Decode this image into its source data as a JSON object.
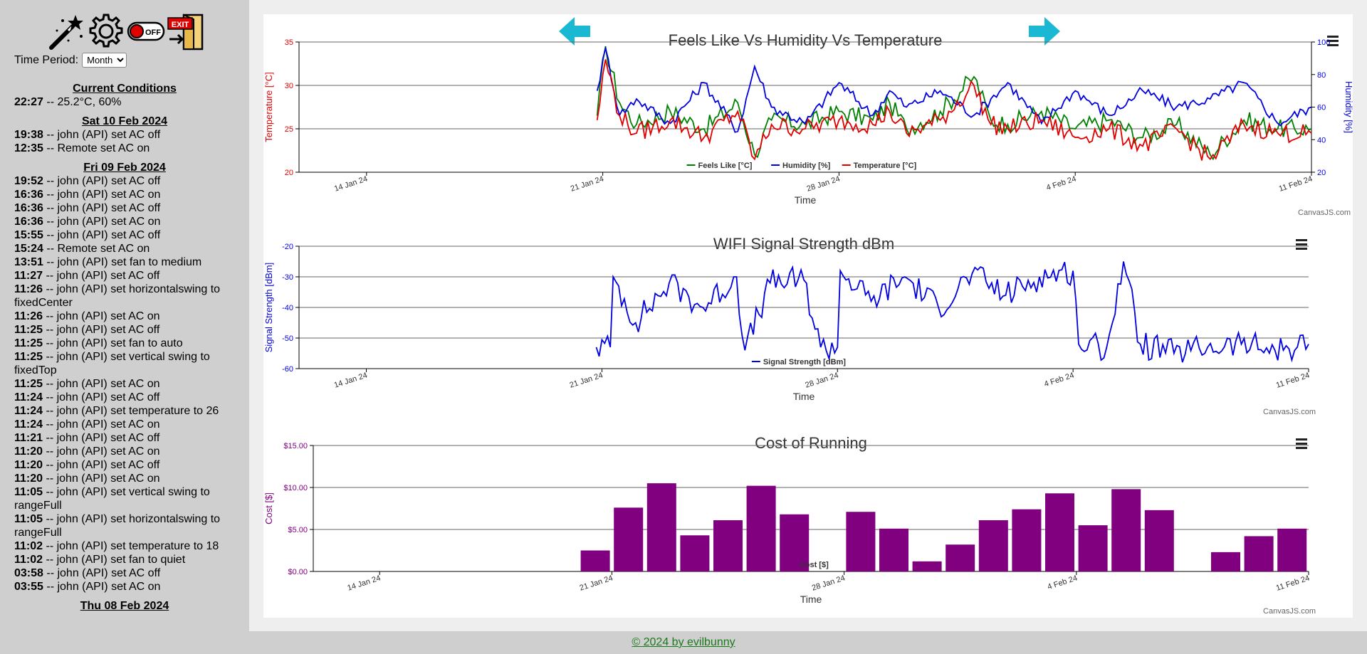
{
  "toolbar": {
    "icons": [
      "magic-wand-icon",
      "gear-icon",
      "power-off-icon",
      "exit-door-icon"
    ],
    "off_label": "OFF",
    "exit_label": "EXIT"
  },
  "period": {
    "label": "Time Period:",
    "selected": "Month"
  },
  "log": [
    {
      "heading": "Current Conditions",
      "entries": [
        {
          "time": "22:27",
          "text": "-- 25.2°C, 60%"
        }
      ]
    },
    {
      "heading": "Sat 10 Feb 2024",
      "entries": [
        {
          "time": "19:38",
          "text": "-- john (API) set AC off"
        },
        {
          "time": "12:35",
          "text": "-- Remote set AC on"
        }
      ]
    },
    {
      "heading": "Fri 09 Feb 2024",
      "entries": [
        {
          "time": "19:52",
          "text": "-- john (API) set AC off"
        },
        {
          "time": "16:36",
          "text": "-- john (API) set AC on"
        },
        {
          "time": "16:36",
          "text": "-- john (API) set AC off"
        },
        {
          "time": "16:36",
          "text": "-- john (API) set AC on"
        },
        {
          "time": "15:55",
          "text": "-- john (API) set AC off"
        },
        {
          "time": "15:24",
          "text": "-- Remote set AC on"
        },
        {
          "time": "13:51",
          "text": "-- john (API) set fan to medium"
        },
        {
          "time": "11:27",
          "text": "-- john (API) set AC off"
        },
        {
          "time": "11:26",
          "text": "-- john (API) set horizontalswing to fixedCenter"
        },
        {
          "time": "11:26",
          "text": "-- john (API) set AC on"
        },
        {
          "time": "11:25",
          "text": "-- john (API) set AC off"
        },
        {
          "time": "11:25",
          "text": "-- john (API) set fan to auto"
        },
        {
          "time": "11:25",
          "text": "-- john (API) set vertical swing to fixedTop"
        },
        {
          "time": "11:25",
          "text": "-- john (API) set AC on"
        },
        {
          "time": "11:24",
          "text": "-- john (API) set AC off"
        },
        {
          "time": "11:24",
          "text": "-- john (API) set temperature to 26"
        },
        {
          "time": "11:24",
          "text": "-- john (API) set AC on"
        },
        {
          "time": "11:21",
          "text": "-- john (API) set AC off"
        },
        {
          "time": "11:20",
          "text": "-- john (API) set AC on"
        },
        {
          "time": "11:20",
          "text": "-- john (API) set AC off"
        },
        {
          "time": "11:20",
          "text": "-- john (API) set AC on"
        },
        {
          "time": "11:05",
          "text": "-- john (API) set vertical swing to rangeFull"
        },
        {
          "time": "11:05",
          "text": "-- john (API) set horizontalswing to rangeFull"
        },
        {
          "time": "11:02",
          "text": "-- john (API) set temperature to 18"
        },
        {
          "time": "11:02",
          "text": "-- john (API) set fan to quiet"
        },
        {
          "time": "03:58",
          "text": "-- john (API) set AC off"
        },
        {
          "time": "03:55",
          "text": "-- john (API) set AC on"
        }
      ]
    },
    {
      "heading": "Thu 08 Feb 2024",
      "entries": []
    }
  ],
  "nav": {
    "prev_icon": "arrow-left-icon",
    "next_icon": "arrow-right-icon",
    "menu_icon": "hamburger-menu-icon"
  },
  "credit": "CanvasJS.com",
  "footer": {
    "text": "© 2024 by evilbunny"
  },
  "colors": {
    "temp": "#e00000",
    "humidity": "#0000e0",
    "feels": "#008000",
    "wifi": "#0000e0",
    "cost": "#800080",
    "arrow": "#1ab8d2"
  },
  "chart_data": [
    {
      "type": "line",
      "title": "Feels Like Vs Humidity Vs Temperature",
      "xlabel": "Time",
      "ylabel": "Temperature [°C]",
      "y2label": "Humidity [%]",
      "x_ticks": [
        "14 Jan 24",
        "21 Jan 24",
        "28 Jan 24",
        "4 Feb 24",
        "11 Feb 24"
      ],
      "xlim": [
        "2024-01-12",
        "2024-02-11"
      ],
      "ylim": [
        20,
        35
      ],
      "y_ticks": [
        20,
        25,
        30,
        35
      ],
      "y2lim": [
        20,
        100
      ],
      "y2_ticks": [
        20,
        40,
        60,
        80,
        100
      ],
      "legend": "bottom-center",
      "grid": true,
      "series": [
        {
          "name": "Feels Like [°C]",
          "axis": "left",
          "color": "#008000",
          "x": [
            "2024-01-20 20:00",
            "2024-01-21 02:00",
            "2024-01-21 12:00",
            "2024-01-22 00:00",
            "2024-01-23 00:00",
            "2024-01-24 00:00",
            "2024-01-25 00:00",
            "2024-01-25 12:00",
            "2024-01-26 00:00",
            "2024-01-27 00:00",
            "2024-01-28 00:00",
            "2024-01-29 00:00",
            "2024-01-29 12:00",
            "2024-01-30 00:00",
            "2024-01-31 00:00",
            "2024-02-01 00:00",
            "2024-02-01 12:00",
            "2024-02-02 00:00",
            "2024-02-03 00:00",
            "2024-02-04 00:00",
            "2024-02-05 00:00",
            "2024-02-06 00:00",
            "2024-02-07 00:00",
            "2024-02-08 00:00",
            "2024-02-09 00:00",
            "2024-02-10 00:00",
            "2024-02-11 00:00"
          ],
          "y": [
            26.5,
            34.5,
            28,
            25.5,
            27,
            25,
            28,
            22,
            26,
            25.5,
            27,
            26,
            28,
            25,
            27,
            31,
            26,
            25.5,
            27,
            25,
            26,
            24,
            25.5,
            22,
            26,
            25,
            25
          ]
        },
        {
          "name": "Humidity [%]",
          "axis": "right",
          "color": "#0000e0",
          "x": [
            "2024-01-20 20:00",
            "2024-01-21 02:00",
            "2024-01-21 12:00",
            "2024-01-22 00:00",
            "2024-01-23 00:00",
            "2024-01-24 00:00",
            "2024-01-25 00:00",
            "2024-01-25 12:00",
            "2024-01-26 00:00",
            "2024-01-27 00:00",
            "2024-01-28 00:00",
            "2024-01-29 00:00",
            "2024-01-29 12:00",
            "2024-01-30 00:00",
            "2024-01-31 00:00",
            "2024-02-01 00:00",
            "2024-02-01 12:00",
            "2024-02-02 00:00",
            "2024-02-03 00:00",
            "2024-02-04 00:00",
            "2024-02-05 00:00",
            "2024-02-06 00:00",
            "2024-02-07 00:00",
            "2024-02-08 00:00",
            "2024-02-09 00:00",
            "2024-02-10 00:00",
            "2024-02-11 00:00"
          ],
          "y": [
            70,
            96,
            55,
            65,
            50,
            75,
            45,
            85,
            60,
            50,
            75,
            55,
            70,
            60,
            70,
            55,
            65,
            75,
            50,
            70,
            55,
            70,
            60,
            65,
            75,
            50,
            60
          ]
        },
        {
          "name": "Temperature [°C]",
          "axis": "left",
          "color": "#e00000",
          "x": [
            "2024-01-20 20:00",
            "2024-01-21 02:00",
            "2024-01-21 12:00",
            "2024-01-22 00:00",
            "2024-01-23 00:00",
            "2024-01-24 00:00",
            "2024-01-25 00:00",
            "2024-01-25 12:00",
            "2024-01-26 00:00",
            "2024-01-27 00:00",
            "2024-01-28 00:00",
            "2024-01-29 00:00",
            "2024-01-29 12:00",
            "2024-01-30 00:00",
            "2024-01-31 00:00",
            "2024-02-01 00:00",
            "2024-02-01 12:00",
            "2024-02-02 00:00",
            "2024-02-03 00:00",
            "2024-02-04 00:00",
            "2024-02-05 00:00",
            "2024-02-06 00:00",
            "2024-02-07 00:00",
            "2024-02-08 00:00",
            "2024-02-09 00:00",
            "2024-02-10 00:00",
            "2024-02-11 00:00"
          ],
          "y": [
            26,
            33,
            26.5,
            24.5,
            26,
            24,
            27,
            21.5,
            25.5,
            25,
            26,
            25.5,
            27,
            24.5,
            26,
            30,
            25.5,
            25,
            26,
            24,
            25,
            23,
            25,
            21.5,
            25.5,
            24.5,
            24.5
          ]
        }
      ]
    },
    {
      "type": "line",
      "title": "WIFI Signal Strength dBm",
      "xlabel": "Time",
      "ylabel": "Signal Strength [dBm]",
      "x_ticks": [
        "14 Jan 24",
        "21 Jan 24",
        "28 Jan 24",
        "4 Feb 24",
        "11 Feb 24"
      ],
      "xlim": [
        "2024-01-12",
        "2024-02-11"
      ],
      "ylim": [
        -60,
        -20
      ],
      "y_ticks": [
        -60,
        -50,
        -40,
        -30,
        -20
      ],
      "legend": "bottom-center",
      "grid": true,
      "series": [
        {
          "name": "Signal Strength [dBm]",
          "color": "#0000e0",
          "x": [
            "2024-01-20 20:00",
            "2024-01-21 06:00",
            "2024-01-21 08:00",
            "2024-01-22 00:00",
            "2024-01-23 00:00",
            "2024-01-24 00:00",
            "2024-01-25 00:00",
            "2024-01-25 06:00",
            "2024-01-26 00:00",
            "2024-01-27 00:00",
            "2024-01-27 12:00",
            "2024-01-28 00:00",
            "2024-01-28 02:00",
            "2024-01-29 00:00",
            "2024-01-30 00:00",
            "2024-01-31 00:00",
            "2024-02-01 00:00",
            "2024-02-02 00:00",
            "2024-02-03 00:00",
            "2024-02-04 00:00",
            "2024-02-04 04:00",
            "2024-02-05 00:00",
            "2024-02-05 12:00",
            "2024-02-06 00:00",
            "2024-02-07 00:00",
            "2024-02-08 00:00",
            "2024-02-09 00:00",
            "2024-02-10 00:00",
            "2024-02-11 00:00"
          ],
          "y": [
            -53,
            -53,
            -30,
            -45,
            -32,
            -40,
            -30,
            -54,
            -32,
            -31,
            -53,
            -53,
            -28,
            -38,
            -30,
            -40,
            -29,
            -36,
            -30,
            -28,
            -52,
            -53,
            -25,
            -52,
            -55,
            -53,
            -52,
            -54,
            -52
          ]
        }
      ]
    },
    {
      "type": "bar",
      "title": "Cost of Running",
      "xlabel": "Time",
      "ylabel": "Cost [$]",
      "x_ticks": [
        "14 Jan 24",
        "21 Jan 24",
        "28 Jan 24",
        "4 Feb 24",
        "11 Feb 24"
      ],
      "xlim": [
        "2024-01-12",
        "2024-02-11"
      ],
      "ylim": [
        0,
        15
      ],
      "y_ticks": [
        "$0.00",
        "$5.00",
        "$10.00",
        "$15.00"
      ],
      "legend": "bottom-center",
      "grid": true,
      "series": [
        {
          "name": "Cost [$]",
          "color": "#800080",
          "x": [
            "2024-01-20",
            "2024-01-21",
            "2024-01-22",
            "2024-01-23",
            "2024-01-24",
            "2024-01-25",
            "2024-01-26",
            "2024-01-27",
            "2024-01-28",
            "2024-01-29",
            "2024-01-30",
            "2024-01-31",
            "2024-02-01",
            "2024-02-02",
            "2024-02-03",
            "2024-02-04",
            "2024-02-05",
            "2024-02-06",
            "2024-02-07",
            "2024-02-08",
            "2024-02-09",
            "2024-02-10"
          ],
          "y": [
            2.5,
            7.6,
            10.5,
            4.3,
            6.1,
            10.2,
            6.8,
            0,
            7.1,
            5.1,
            1.2,
            3.2,
            6.1,
            7.4,
            9.3,
            5.5,
            9.8,
            7.3,
            0,
            2.3,
            4.2,
            5.1
          ]
        }
      ]
    }
  ]
}
